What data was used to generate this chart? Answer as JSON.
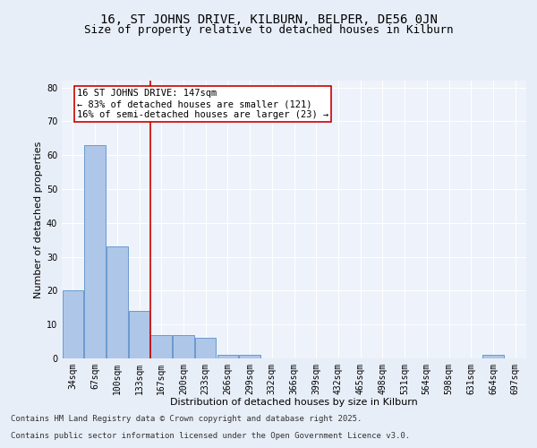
{
  "title": "16, ST JOHNS DRIVE, KILBURN, BELPER, DE56 0JN",
  "subtitle": "Size of property relative to detached houses in Kilburn",
  "xlabel": "Distribution of detached houses by size in Kilburn",
  "ylabel": "Number of detached properties",
  "categories": [
    "34sqm",
    "67sqm",
    "100sqm",
    "133sqm",
    "167sqm",
    "200sqm",
    "233sqm",
    "266sqm",
    "299sqm",
    "332sqm",
    "366sqm",
    "399sqm",
    "432sqm",
    "465sqm",
    "498sqm",
    "531sqm",
    "564sqm",
    "598sqm",
    "631sqm",
    "664sqm",
    "697sqm"
  ],
  "values": [
    20,
    63,
    33,
    14,
    7,
    7,
    6,
    1,
    1,
    0,
    0,
    0,
    0,
    0,
    0,
    0,
    0,
    0,
    0,
    1,
    0
  ],
  "bar_color": "#aec6e8",
  "bar_edge_color": "#5b8fc9",
  "annotation_text_line1": "16 ST JOHNS DRIVE: 147sqm",
  "annotation_text_line2": "← 83% of detached houses are smaller (121)",
  "annotation_text_line3": "16% of semi-detached houses are larger (23) →",
  "annotation_box_color": "#ffffff",
  "annotation_box_edge_color": "#cc0000",
  "ylim": [
    0,
    82
  ],
  "yticks": [
    0,
    10,
    20,
    30,
    40,
    50,
    60,
    70,
    80
  ],
  "bg_color": "#e8eef8",
  "plot_bg_color": "#eef2fa",
  "grid_color": "#ffffff",
  "footer_line1": "Contains HM Land Registry data © Crown copyright and database right 2025.",
  "footer_line2": "Contains public sector information licensed under the Open Government Licence v3.0.",
  "title_fontsize": 10,
  "subtitle_fontsize": 9,
  "axis_label_fontsize": 8,
  "tick_fontsize": 7,
  "annotation_fontsize": 7.5,
  "footer_fontsize": 6.5
}
